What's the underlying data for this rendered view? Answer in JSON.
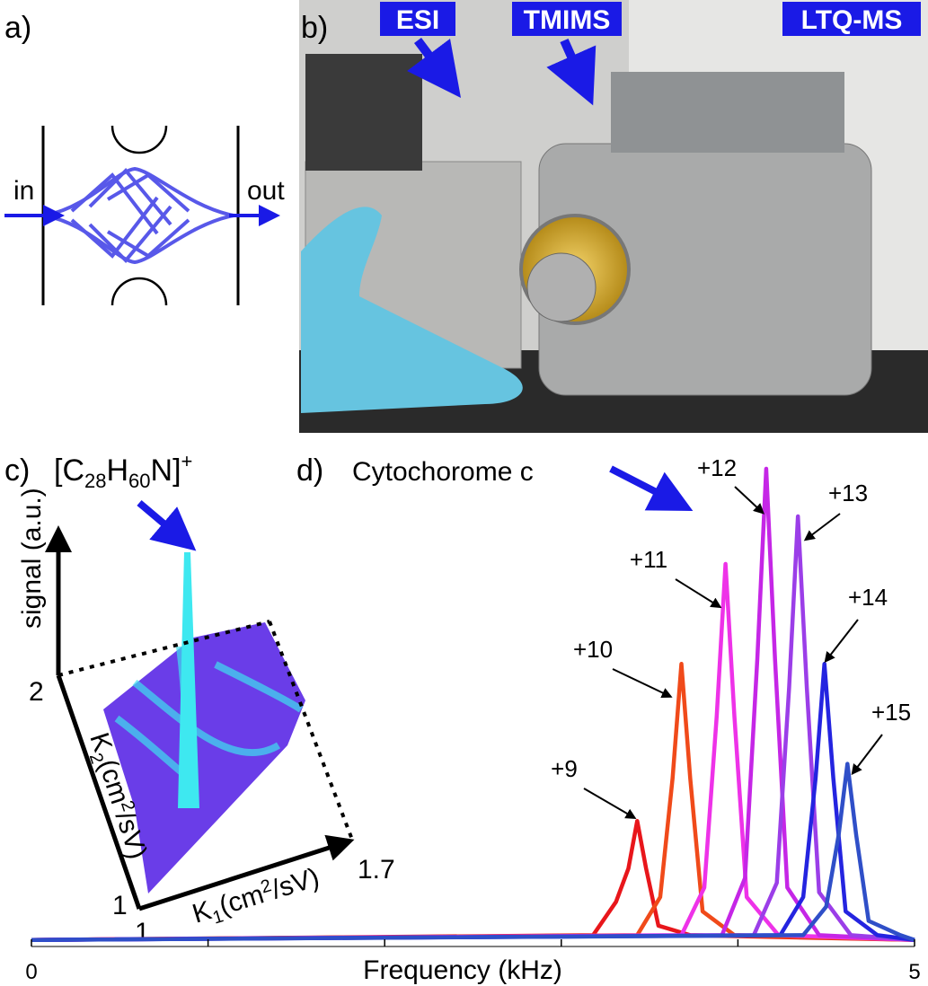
{
  "panel_a": {
    "label": "a)",
    "in": "in",
    "out": "out"
  },
  "panel_b": {
    "label": "b)",
    "tags": [
      "ESI",
      "TMIMS",
      "LTQ-MS"
    ]
  },
  "panel_c": {
    "label": "c)",
    "formula": [
      "[C",
      "28",
      "H",
      "60",
      "N]",
      "+"
    ],
    "signal_axis": "signal (a.u.)",
    "k2_axis": [
      "K",
      "2",
      "(cm",
      "2",
      "/sV)"
    ],
    "k1_axis": [
      "K",
      "1",
      "(cm",
      "2",
      "/sV)"
    ],
    "k2_ticks": [
      "2",
      "1"
    ],
    "k1_ticks": [
      "1",
      "1.7"
    ]
  },
  "chart_data": {
    "type": "line",
    "label": "d)",
    "title": "Cytochorome c",
    "xlabel": "Frequency (kHz)",
    "xlim": [
      0,
      5
    ],
    "ylim": [
      0,
      100
    ],
    "xticks": [
      0,
      5
    ],
    "xminor": [
      1,
      2,
      3,
      4
    ],
    "series": [
      {
        "name": "+9",
        "color": "#e8161b",
        "x": [
          0,
          3.18,
          3.31,
          3.38,
          3.43,
          3.48,
          3.55,
          3.73,
          5
        ],
        "values": [
          1,
          2,
          9,
          16,
          26,
          16,
          4,
          2,
          1
        ]
      },
      {
        "name": "+10",
        "color": "#f04a1a",
        "x": [
          0,
          3.43,
          3.56,
          3.63,
          3.68,
          3.73,
          3.8,
          3.98,
          5
        ],
        "values": [
          1,
          2,
          10,
          35,
          59,
          35,
          7,
          2,
          1
        ]
      },
      {
        "name": "+11",
        "color": "#ee32e8",
        "x": [
          0,
          3.68,
          3.81,
          3.88,
          3.93,
          3.98,
          4.05,
          4.23,
          5
        ],
        "values": [
          1,
          2,
          12,
          48,
          80,
          48,
          10,
          2,
          1
        ]
      },
      {
        "name": "+12",
        "color": "#c526e6",
        "x": [
          0,
          3.91,
          4.04,
          4.11,
          4.16,
          4.21,
          4.28,
          4.46,
          5
        ],
        "values": [
          1,
          2,
          14,
          60,
          100,
          60,
          12,
          2,
          1
        ]
      },
      {
        "name": "+13",
        "color": "#9b3ee8",
        "x": [
          0,
          4.09,
          4.22,
          4.29,
          4.34,
          4.39,
          4.46,
          4.64,
          5
        ],
        "values": [
          1,
          2,
          13,
          54,
          90,
          54,
          11,
          2,
          1
        ]
      },
      {
        "name": "+14",
        "color": "#2424e0",
        "x": [
          0,
          4.24,
          4.37,
          4.44,
          4.49,
          4.54,
          4.61,
          4.79,
          5
        ],
        "values": [
          1,
          2,
          10,
          35,
          59,
          35,
          7,
          2,
          1
        ]
      },
      {
        "name": "+15",
        "color": "#2f4fc8",
        "x": [
          0,
          4.37,
          4.5,
          4.57,
          4.62,
          4.67,
          4.74,
          4.92,
          5
        ],
        "values": [
          1,
          2,
          8,
          23,
          38,
          23,
          5,
          2,
          1
        ]
      }
    ]
  }
}
